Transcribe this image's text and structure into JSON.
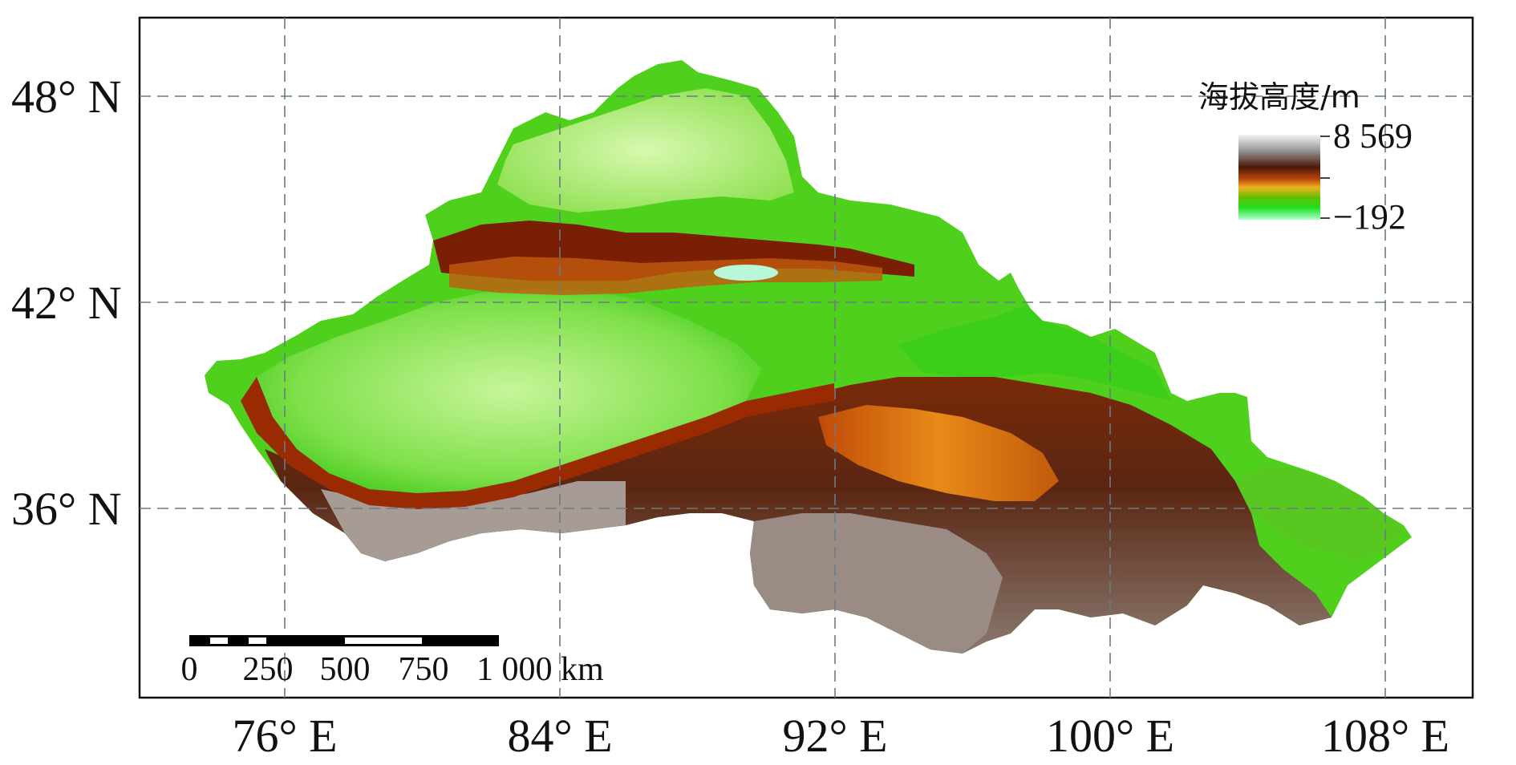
{
  "lat_labels": [
    "48° N",
    "42° N",
    "36° N"
  ],
  "lon_labels": [
    "76° E",
    "84° E",
    "92° E",
    "100° E",
    "108° E"
  ],
  "legend": {
    "title": "海拔高度/m",
    "max": "8 569",
    "min": "−192",
    "colors": [
      "#f2f2f2",
      "#9a9a9a",
      "#5a2a10",
      "#6b1a00",
      "#c8500a",
      "#f0a020",
      "#7ac800",
      "#28e000",
      "#aaffaa"
    ]
  },
  "scale_bar": {
    "ticks": [
      "0",
      "250",
      "500",
      "750",
      "1 000 km"
    ]
  }
}
